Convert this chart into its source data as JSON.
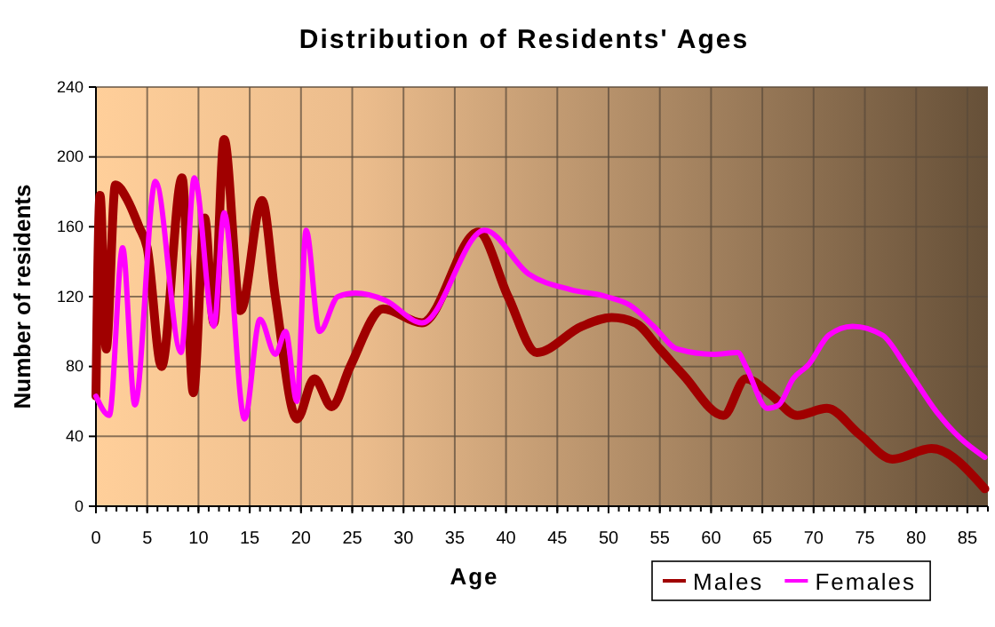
{
  "chart_data": {
    "type": "line",
    "title": "Distribution of Residents' Ages",
    "xlabel": "Age",
    "ylabel": "Number of residents",
    "xlim": [
      0,
      87
    ],
    "xticks": [
      0,
      5,
      10,
      15,
      20,
      25,
      30,
      35,
      40,
      45,
      50,
      55,
      60,
      65,
      70,
      75,
      80,
      85
    ],
    "ylim": [
      0,
      240
    ],
    "yticks": [
      0,
      40,
      80,
      120,
      160,
      200,
      240
    ],
    "grid": true,
    "legend": "bottom right",
    "series": [
      {
        "name": "Males",
        "color": "#a00000",
        "x": [
          0,
          0.4,
          1,
          1.9,
          3.1,
          4.2,
          5,
          6.4,
          8.4,
          9.5,
          10.6,
          11.5,
          12.5,
          14.1,
          16.2,
          17.5,
          19.6,
          21.3,
          23,
          24.8,
          28,
          31.8,
          37.3,
          40.2,
          43,
          47.4,
          50.3,
          52.6,
          55,
          57.3,
          61.2,
          63.4,
          65.8,
          68.4,
          71.3,
          74.5,
          77.7,
          81.5,
          86.7
        ],
        "values": [
          63,
          178,
          90,
          184,
          175,
          160,
          148,
          80,
          188,
          65,
          165,
          105,
          210,
          112,
          175,
          120,
          50,
          73,
          57,
          80,
          113,
          105,
          157,
          120,
          88,
          103,
          108,
          105,
          90,
          75,
          52,
          73,
          64,
          52,
          56,
          41,
          27,
          33,
          10
        ]
      },
      {
        "name": "Females",
        "color": "#ff00ff",
        "x": [
          0,
          1.3,
          2.6,
          3.8,
          5.8,
          8.3,
          9.6,
          11.5,
          12.5,
          14.5,
          16,
          17.5,
          18.5,
          19.6,
          20.5,
          21.8,
          23.6,
          25.3,
          28.2,
          31.8,
          37.9,
          42.2,
          46.3,
          49.8,
          52.1,
          54.4,
          56.7,
          60.2,
          62.6,
          63.4,
          65.5,
          66.6,
          68,
          69.5,
          71.5,
          73.8,
          76.7,
          79,
          82,
          84.3,
          86.7
        ],
        "values": [
          63,
          52,
          148,
          58,
          186,
          88,
          188,
          103,
          168,
          50,
          107,
          87,
          100,
          60,
          158,
          100,
          120,
          122,
          118,
          105,
          158,
          133,
          124,
          120,
          115,
          103,
          90,
          87,
          88,
          80,
          56,
          58,
          73,
          81,
          98,
          103,
          98,
          80,
          54,
          39,
          28
        ]
      }
    ]
  }
}
